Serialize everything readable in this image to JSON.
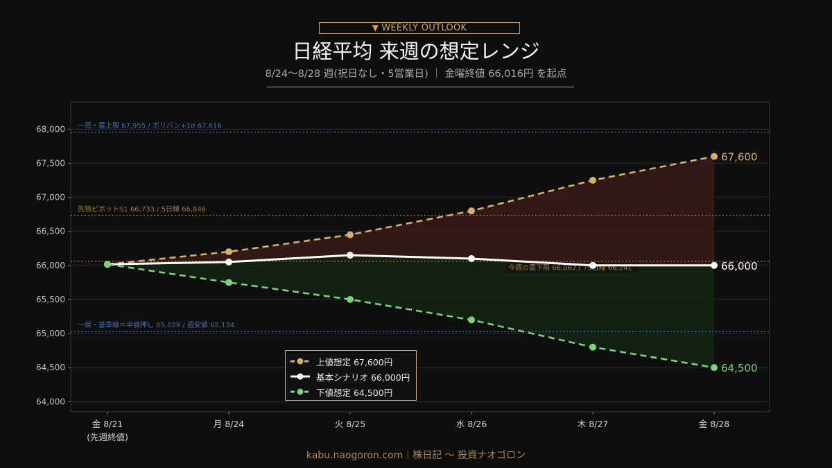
{
  "header": {
    "badge": "WEEKLY OUTLOOK",
    "title": "日経平均 来週の想定レンジ",
    "subtitle": "8/24〜8/28 週(祝日なし・5営業日) ｜ 金曜終値 66,016円 を起点"
  },
  "footer": {
    "text": "kabu.naogoron.com｜株日記 〜 投資ナオゴロン"
  },
  "colors": {
    "upper": "#d4b06e",
    "base": "#ffffff",
    "lower": "#7ecf7e",
    "upper_fill": "#3a1a1a",
    "lower_fill": "#142414",
    "blue_ref": "#4a6fa8",
    "gold_ref": "#a07a3a"
  },
  "chart_data": {
    "type": "line",
    "categories": [
      "金 8/21",
      "月 8/24",
      "火 8/25",
      "水 8/26",
      "木 8/27",
      "金 8/28"
    ],
    "category_sub": [
      "(先週終値)",
      "",
      "",
      "",
      "",
      ""
    ],
    "yticks": [
      "64,000",
      "64,500",
      "65,000",
      "65,500",
      "66,000",
      "66,500",
      "67,000",
      "67,500",
      "68,000"
    ],
    "ylim": [
      63850,
      68400
    ],
    "series": [
      {
        "key": "upper",
        "name": "上値想定 67,600円",
        "values": [
          66016,
          66200,
          66450,
          66800,
          67250,
          67600
        ],
        "end_label": "67,600",
        "dash": true
      },
      {
        "key": "base",
        "name": "基本シナリオ 66,000円",
        "values": [
          66016,
          66050,
          66150,
          66100,
          66000,
          66000
        ],
        "end_label": "66,000",
        "dash": false
      },
      {
        "key": "lower",
        "name": "下値想定 64,500円",
        "values": [
          66016,
          65750,
          65500,
          65200,
          64800,
          64500
        ],
        "end_label": "64,500",
        "dash": true
      }
    ],
    "reference_lines": [
      {
        "value": 67955,
        "label": "一目・雲上限 67,955 / ボリバン+1σ 67,616",
        "color": "blue",
        "label_pos": "left"
      },
      {
        "value": 66733,
        "label": "先物ピボットS1 66,733 / 5日線 66,848",
        "color": "gold",
        "label_pos": "left"
      },
      {
        "value": 66062,
        "label": "今週の雲下限 66,062 / 75日線 66,241",
        "color": "gold",
        "label_pos": "right"
      },
      {
        "value": 65029,
        "label": "一目・基準線＝半値押し 65,029 / 週安値 65,134",
        "color": "blue",
        "label_pos": "left"
      }
    ],
    "grid": true,
    "legend_position": "bottom-center"
  }
}
